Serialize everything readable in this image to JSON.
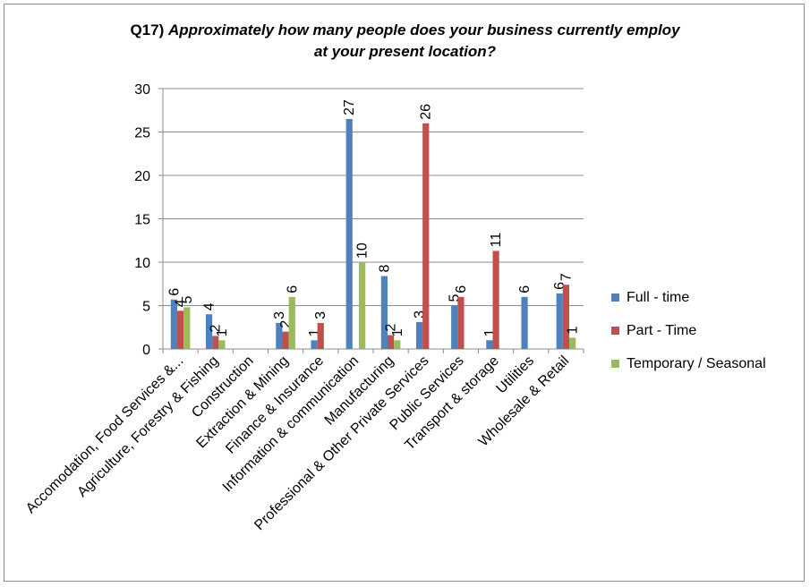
{
  "chart_data": {
    "type": "bar",
    "title_prefix": "Q17) ",
    "title_line1": "Approximately how many people does your business currently employ",
    "title_line2": "at your present location?",
    "categories": [
      "Accomodation, Food Services &...",
      "Agriculture, Forestry & Fishing",
      "Construction",
      "Extraction & Mining",
      "Finance & Insurance",
      "Information & communication",
      "Manufacturing",
      "Professional & Other Private Services",
      "Public Services",
      "Transport & storage",
      "Utilities",
      "Wholesale & Retail"
    ],
    "series": [
      {
        "name": "Full - time",
        "color": "#4f81bd",
        "values": [
          5.7,
          4.0,
          null,
          3.0,
          1.0,
          26.5,
          8.4,
          3.1,
          5.0,
          1.0,
          6.0,
          6.4
        ],
        "labels": [
          "6",
          "4",
          "",
          "3",
          "1",
          "27",
          "8",
          "3",
          "5",
          "1",
          "6",
          "6"
        ]
      },
      {
        "name": "Part - Time",
        "color": "#c0504d",
        "values": [
          4.4,
          1.5,
          null,
          2.0,
          3.0,
          null,
          1.6,
          26.0,
          6.0,
          11.3,
          null,
          7.4
        ],
        "labels": [
          "4",
          "2",
          "",
          "2",
          "3",
          "",
          "2",
          "26",
          "6",
          "11",
          "",
          "7"
        ]
      },
      {
        "name": "Temporary / Seasonal",
        "color": "#9bbb59",
        "values": [
          4.8,
          1.0,
          null,
          6.0,
          null,
          10.0,
          1.0,
          null,
          null,
          null,
          null,
          1.3
        ],
        "labels": [
          "5",
          "1",
          "",
          "6",
          "",
          "10",
          "1",
          "",
          "",
          "",
          "",
          "1"
        ]
      }
    ],
    "ylim": [
      0,
      30
    ],
    "yticks": [
      0,
      5,
      10,
      15,
      20,
      25,
      30
    ],
    "gridlines": true,
    "legend_position": "right"
  }
}
